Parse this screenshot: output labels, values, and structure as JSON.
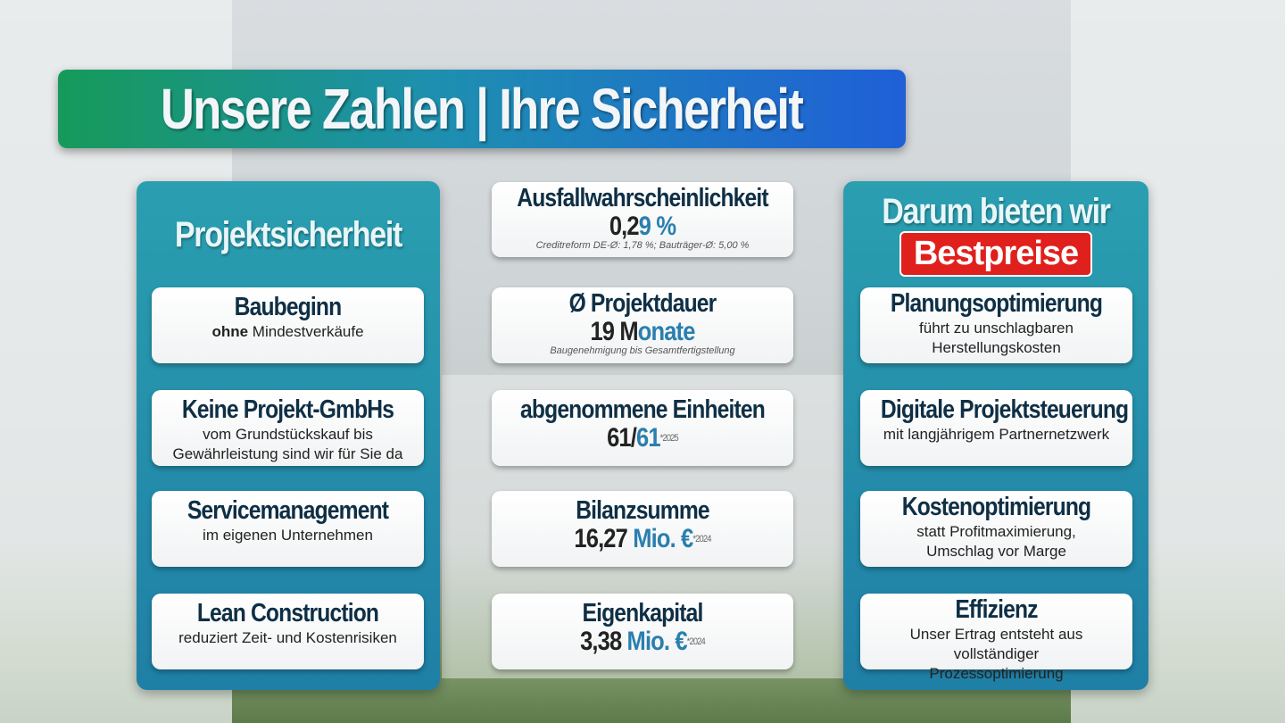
{
  "title": "Unsere Zahlen | Ihre Sicherheit",
  "left": {
    "heading": "Projektsicherheit",
    "items": [
      {
        "title": "Baubeginn",
        "bold": "ohne",
        "text": " Mindestverkäufe"
      },
      {
        "title": "Keine Projekt-GmbHs",
        "text": "vom Grundstückskauf bis Gewährleistung sind wir für Sie da"
      },
      {
        "title": "Servicemanagement",
        "text": "im eigenen Unternehmen"
      },
      {
        "title": "Lean Construction",
        "text": "reduziert Zeit- und Kostenrisiken"
      }
    ]
  },
  "middle": [
    {
      "title": "Ausfallwahrscheinlichkeit",
      "value_a": "0,2",
      "value_b": "9 %",
      "note": "Creditreform DE-Ø: 1,78 %; Bauträger-Ø: 5,00 %"
    },
    {
      "title": "Ø Projektdauer",
      "value_a": "19 M",
      "value_b": "onate",
      "note": "Baugenehmigung bis Gesamtfertigstellung"
    },
    {
      "title": "abgenommene Einheiten",
      "value_a": "61/",
      "value_b": "61",
      "sup": "*2025"
    },
    {
      "title": "Bilanzsumme",
      "value_a": "16,27 ",
      "value_b": "Mio. €",
      "sup": "*2024"
    },
    {
      "title": "Eigenkapital",
      "value_a": "3,38 ",
      "value_b": "Mio. €",
      "sup": "*2024"
    }
  ],
  "right": {
    "heading": "Darum bieten wir",
    "badge": "Bestpreise",
    "items": [
      {
        "title": "Planungsoptimierung",
        "text": "führt zu unschlagbaren Herstellungskosten"
      },
      {
        "title": "Digitale Projektsteuerung",
        "text": "mit langjährigem Partnernetzwerk"
      },
      {
        "title": "Kostenoptimierung",
        "text": "statt Profitmaximierung, Umschlag vor Marge"
      },
      {
        "title": "Effizienz",
        "text": "Unser Ertrag entsteht aus vollständiger Prozessoptimierung"
      }
    ]
  },
  "colors": {
    "accent_blue": "#2a7fae",
    "panel": "#1f8fa8",
    "badge": "#e0201c"
  }
}
